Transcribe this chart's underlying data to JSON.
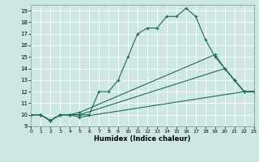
{
  "title": "",
  "xlabel": "Humidex (Indice chaleur)",
  "xlim": [
    0,
    23
  ],
  "ylim": [
    9,
    19.5
  ],
  "yticks": [
    9,
    10,
    11,
    12,
    13,
    14,
    15,
    16,
    17,
    18,
    19
  ],
  "xticks": [
    0,
    1,
    2,
    3,
    4,
    5,
    6,
    7,
    8,
    9,
    10,
    11,
    12,
    13,
    14,
    15,
    16,
    17,
    18,
    19,
    20,
    21,
    22,
    23
  ],
  "bg_color": "#cde8e4",
  "grid_color": "#ffffff",
  "line_color": "#1a6b5a",
  "series": [
    {
      "x": [
        0,
        1,
        2,
        3,
        4,
        5,
        6,
        7,
        8,
        9,
        10,
        11,
        12,
        13,
        14,
        15,
        16,
        17,
        18,
        19,
        20,
        21,
        22,
        23
      ],
      "y": [
        10,
        10,
        9.5,
        10,
        10,
        10,
        10,
        12,
        12,
        13,
        15,
        17,
        17.5,
        17.5,
        18.5,
        18.5,
        19.2,
        18.5,
        16.5,
        15,
        14,
        13,
        12,
        12
      ]
    },
    {
      "x": [
        0,
        1,
        2,
        3,
        4,
        5,
        22,
        23
      ],
      "y": [
        10,
        10,
        9.5,
        10,
        10,
        9.8,
        12,
        12
      ]
    },
    {
      "x": [
        0,
        1,
        2,
        3,
        4,
        5,
        20,
        21,
        22,
        23
      ],
      "y": [
        10,
        10,
        9.5,
        10,
        10,
        10,
        14,
        13,
        12,
        12
      ]
    },
    {
      "x": [
        0,
        1,
        2,
        3,
        4,
        5,
        19,
        20,
        21,
        22,
        23
      ],
      "y": [
        10,
        10,
        9.5,
        10,
        10,
        10.2,
        15.2,
        14,
        13,
        12,
        12
      ]
    }
  ]
}
